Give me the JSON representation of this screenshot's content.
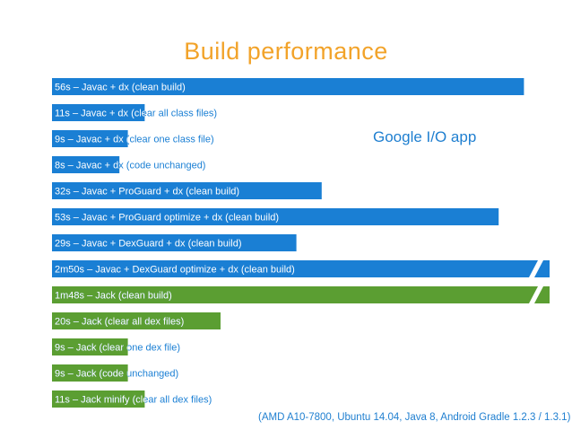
{
  "title": "Build performance",
  "note": "Google I/O app",
  "footnote": "(AMD A10-7800, Ubuntu 14.04, Java 8, Android Gradle 1.2.3 / 1.3.1)",
  "colors": {
    "javac": "#1a7fd4",
    "jack": "#5b9e32",
    "title": "#f2a32a",
    "label_inside": "#ffffff",
    "label_outside": "#1a7fd4"
  },
  "chart_data": {
    "type": "bar",
    "orientation": "horizontal",
    "unit": "seconds",
    "axis_break_marks_on": [
      "2m50s – Javac + DexGuard optimize + dx (clean build)"
    ],
    "bars": [
      {
        "label": "56s – Javac + dx (clean build)",
        "value": 56,
        "group": "javac"
      },
      {
        "label": "11s – Javac + dx (clear all class files)",
        "value": 11,
        "group": "javac"
      },
      {
        "label": "9s – Javac + dx (clear one class file)",
        "value": 9,
        "group": "javac"
      },
      {
        "label": "8s – Javac + dx (code unchanged)",
        "value": 8,
        "group": "javac"
      },
      {
        "label": "32s – Javac + ProGuard + dx (clean build)",
        "value": 32,
        "group": "javac"
      },
      {
        "label": "53s – Javac + ProGuard optimize + dx (clean build)",
        "value": 53,
        "group": "javac"
      },
      {
        "label": "29s – Javac + DexGuard + dx (clean build)",
        "value": 29,
        "group": "javac"
      },
      {
        "label": "2m50s – Javac + DexGuard optimize + dx (clean build)",
        "value": 170,
        "group": "javac",
        "broken": true
      },
      {
        "label": "1m48s – Jack (clean build)",
        "value": 108,
        "group": "jack",
        "broken": true
      },
      {
        "label": "20s – Jack (clear all dex files)",
        "value": 20,
        "group": "jack"
      },
      {
        "label": "9s – Jack (clear one dex file)",
        "value": 9,
        "group": "jack"
      },
      {
        "label": "9s – Jack (code unchanged)",
        "value": 9,
        "group": "jack"
      },
      {
        "label": "11s – Jack minify (clear all dex files)",
        "value": 11,
        "group": "jack"
      }
    ]
  }
}
